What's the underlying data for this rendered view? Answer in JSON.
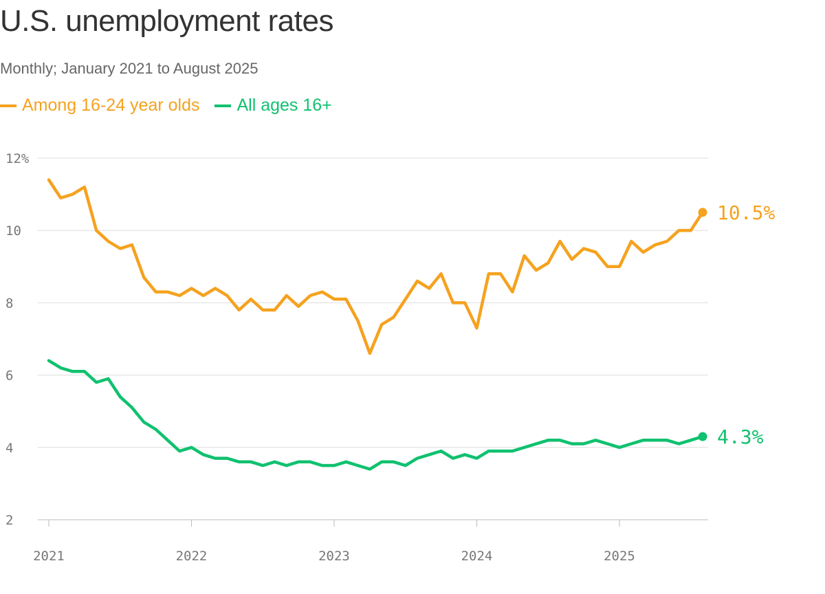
{
  "header": {
    "title": "U.S. unemployment rates",
    "subtitle": "Monthly; January 2021 to August 2025"
  },
  "legend": [
    {
      "label": "Among 16-24 year olds",
      "color": "#f5a21f"
    },
    {
      "label": "All ages 16+",
      "color": "#10c16f"
    }
  ],
  "chart_data": {
    "type": "line",
    "title": "U.S. unemployment rates",
    "subtitle": "Monthly; January 2021 to August 2025",
    "x_start": "2021-01",
    "x_end": "2025-08",
    "x_ticks": [
      "2021",
      "2022",
      "2023",
      "2024",
      "2025"
    ],
    "y_ticks": [
      "12%",
      "10",
      "8",
      "6",
      "4",
      "2"
    ],
    "ylim": [
      2,
      12
    ],
    "grid": true,
    "legend_position": "top-left",
    "series": [
      {
        "name": "Among 16-24 year olds",
        "color": "#f5a21f",
        "end_label": "10.5%",
        "values": [
          11.4,
          10.9,
          11.0,
          11.2,
          10.0,
          9.7,
          9.5,
          9.6,
          8.7,
          8.3,
          8.3,
          8.2,
          8.4,
          8.2,
          8.4,
          8.2,
          7.8,
          8.1,
          7.8,
          7.8,
          8.2,
          7.9,
          8.2,
          8.3,
          8.1,
          8.1,
          7.5,
          6.6,
          7.4,
          7.6,
          8.1,
          8.6,
          8.4,
          8.8,
          8.0,
          8.0,
          7.3,
          8.8,
          8.8,
          8.3,
          9.3,
          8.9,
          9.1,
          9.7,
          9.2,
          9.5,
          9.4,
          9.0,
          9.0,
          9.7,
          9.4,
          9.6,
          9.7,
          10.0,
          10.0,
          10.5
        ]
      },
      {
        "name": "All ages 16+",
        "color": "#10c16f",
        "end_label": "4.3%",
        "values": [
          6.4,
          6.2,
          6.1,
          6.1,
          5.8,
          5.9,
          5.4,
          5.1,
          4.7,
          4.5,
          4.2,
          3.9,
          4.0,
          3.8,
          3.7,
          3.7,
          3.6,
          3.6,
          3.5,
          3.6,
          3.5,
          3.6,
          3.6,
          3.5,
          3.5,
          3.6,
          3.5,
          3.4,
          3.6,
          3.6,
          3.5,
          3.7,
          3.8,
          3.9,
          3.7,
          3.8,
          3.7,
          3.9,
          3.9,
          3.9,
          4.0,
          4.1,
          4.2,
          4.2,
          4.1,
          4.1,
          4.2,
          4.1,
          4.0,
          4.1,
          4.2,
          4.2,
          4.2,
          4.1,
          4.2,
          4.3
        ]
      }
    ]
  }
}
